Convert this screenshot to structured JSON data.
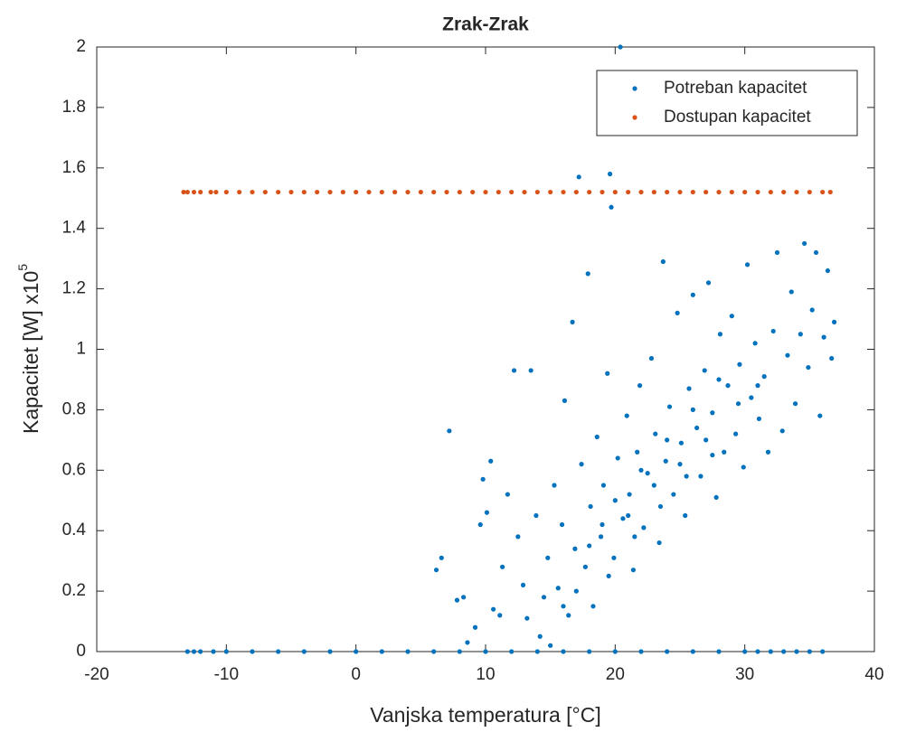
{
  "chart_data": {
    "type": "scatter",
    "title": "Zrak-Zrak",
    "xlabel": "Vanjska temperatura [°C]",
    "ylabel": "Kapacitet [W] x10",
    "ylabel_power": "5",
    "xlim": [
      -20,
      40
    ],
    "xticks": [
      -20,
      -10,
      0,
      10,
      20,
      30,
      40
    ],
    "ylim": [
      0,
      2
    ],
    "yticks": [
      0,
      0.2,
      0.4,
      0.6,
      0.8,
      1,
      1.2,
      1.4,
      1.6,
      1.8,
      2
    ],
    "legend": "upper right",
    "series": [
      {
        "name": "Potreban kapacitet",
        "color": "#0072BD",
        "x": [
          -13,
          -12.5,
          -12,
          -11,
          -10,
          -8,
          -6,
          -4,
          -2,
          0,
          2,
          4,
          6,
          8,
          10,
          12,
          14,
          16,
          18,
          20,
          22,
          24,
          26,
          28,
          30,
          31,
          32,
          33,
          34,
          35,
          36,
          6.2,
          6.6,
          7.2,
          7.8,
          8.3,
          8.6,
          9.2,
          9.6,
          9.8,
          10.1,
          10.4,
          10.6,
          11.1,
          11.3,
          11.7,
          12.2,
          12.5,
          12.9,
          13.2,
          13.5,
          13.9,
          14.2,
          14.5,
          14.8,
          15.0,
          15.3,
          15.6,
          15.9,
          16.1,
          16.4,
          16.7,
          16.9,
          17.2,
          17.4,
          17.7,
          17.9,
          18.1,
          18.3,
          18.6,
          18.9,
          19.1,
          19.4,
          19.6,
          19.7,
          19.9,
          20.2,
          20.4,
          20.6,
          20.9,
          21.1,
          21.4,
          21.7,
          21.9,
          22.2,
          22.5,
          22.8,
          23.1,
          23.4,
          23.7,
          23.9,
          24.2,
          24.5,
          24.8,
          25.1,
          25.4,
          25.7,
          26.0,
          26.3,
          26.6,
          26.9,
          27.2,
          27.5,
          27.8,
          28.1,
          28.4,
          28.7,
          29.0,
          29.3,
          29.6,
          29.9,
          30.2,
          30.5,
          30.8,
          31.1,
          31.5,
          31.8,
          32.2,
          32.5,
          32.9,
          33.3,
          33.6,
          33.9,
          34.3,
          34.6,
          34.9,
          35.2,
          35.5,
          35.8,
          36.1,
          36.4,
          36.7,
          36.9,
          18,
          19,
          20,
          21,
          22,
          23,
          24,
          25,
          26,
          27,
          28,
          17,
          16,
          19.5,
          21.5,
          23.5,
          25.5,
          27.5,
          29.5,
          31
        ],
        "values": [
          0,
          0,
          0,
          0,
          0,
          0,
          0,
          0,
          0,
          0,
          0,
          0,
          0,
          0,
          0,
          0,
          0,
          0,
          0,
          0,
          0,
          0,
          0,
          0,
          0,
          0,
          0,
          0,
          0,
          0,
          0,
          0.27,
          0.31,
          0.73,
          0.17,
          0.18,
          0.03,
          0.08,
          0.42,
          0.57,
          0.46,
          0.63,
          0.14,
          0.12,
          0.28,
          0.52,
          0.93,
          0.38,
          0.22,
          0.11,
          0.93,
          0.45,
          0.05,
          0.18,
          0.31,
          0.02,
          0.55,
          0.21,
          0.42,
          0.83,
          0.12,
          1.09,
          0.34,
          1.57,
          0.62,
          0.28,
          1.25,
          0.48,
          0.15,
          0.71,
          0.38,
          0.55,
          0.92,
          1.58,
          1.47,
          0.31,
          0.64,
          2.0,
          0.44,
          0.78,
          0.52,
          0.27,
          0.66,
          0.88,
          0.41,
          0.59,
          0.97,
          0.72,
          0.36,
          1.29,
          0.63,
          0.81,
          0.52,
          1.12,
          0.69,
          0.45,
          0.87,
          1.18,
          0.74,
          0.58,
          0.93,
          1.22,
          0.79,
          0.51,
          1.05,
          0.66,
          0.88,
          1.11,
          0.72,
          0.95,
          0.61,
          1.28,
          0.84,
          1.02,
          0.77,
          0.91,
          0.66,
          1.06,
          1.32,
          0.73,
          0.98,
          1.19,
          0.82,
          1.05,
          1.35,
          0.94,
          1.13,
          1.32,
          0.78,
          1.04,
          1.26,
          0.97,
          1.09,
          0.35,
          0.42,
          0.5,
          0.45,
          0.6,
          0.55,
          0.7,
          0.62,
          0.8,
          0.7,
          0.9,
          0.2,
          0.15,
          0.25,
          0.38,
          0.48,
          0.58,
          0.65,
          0.82,
          0.88
        ]
      },
      {
        "name": "Dostupan kapacitet",
        "color": "#D95319",
        "x": [
          -13.3,
          -13,
          -12.5,
          -12,
          -11.2,
          -10.8,
          -10,
          -9,
          -8,
          -7,
          -6,
          -5,
          -4,
          -3,
          -2,
          -1,
          0,
          1,
          2,
          3,
          4,
          5,
          6,
          7,
          8,
          9,
          10,
          11,
          12,
          13,
          14,
          15,
          16,
          17,
          18,
          19,
          20,
          21,
          22,
          23,
          24,
          25,
          26,
          27,
          28,
          29,
          30,
          31,
          32,
          33,
          34,
          35,
          36,
          36.6
        ],
        "values": [
          1.52,
          1.52,
          1.52,
          1.52,
          1.52,
          1.52,
          1.52,
          1.52,
          1.52,
          1.52,
          1.52,
          1.52,
          1.52,
          1.52,
          1.52,
          1.52,
          1.52,
          1.52,
          1.52,
          1.52,
          1.52,
          1.52,
          1.52,
          1.52,
          1.52,
          1.52,
          1.52,
          1.52,
          1.52,
          1.52,
          1.52,
          1.52,
          1.52,
          1.52,
          1.52,
          1.52,
          1.52,
          1.52,
          1.52,
          1.52,
          1.52,
          1.52,
          1.52,
          1.52,
          1.52,
          1.52,
          1.52,
          1.52,
          1.52,
          1.52,
          1.52,
          1.52,
          1.52,
          1.52
        ]
      }
    ]
  }
}
